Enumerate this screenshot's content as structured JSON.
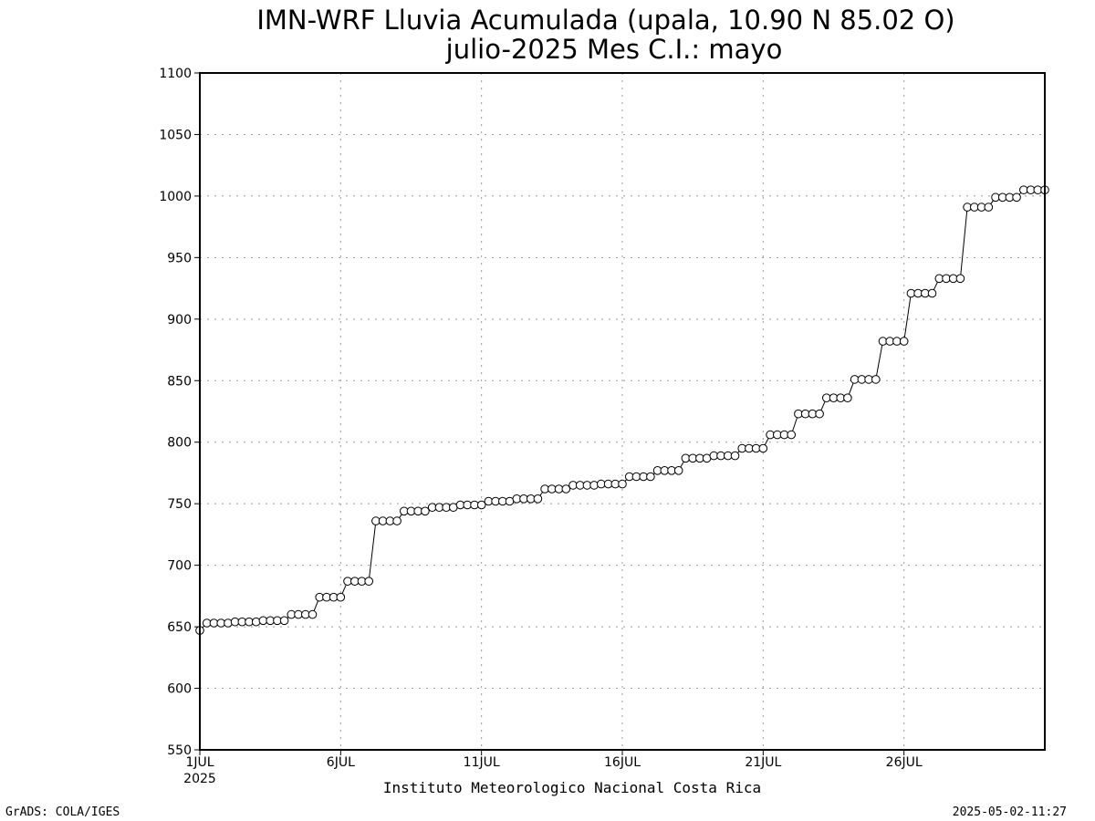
{
  "chart_data": {
    "type": "line",
    "title": "IMN-WRF  Lluvia Acumulada (upala, 10.90  N 85.02  O)",
    "subtitle": "julio-2025 Mes C.I.: mayo",
    "xlabel": "Instituto Meteorologico Nacional Costa Rica",
    "ylabel": "",
    "ylim": [
      550,
      1100
    ],
    "yticks": [
      550,
      600,
      650,
      700,
      750,
      800,
      850,
      900,
      950,
      1000,
      1050,
      1100
    ],
    "xlim_day": [
      1,
      31
    ],
    "xticks": [
      {
        "day": 1,
        "label": "1JUL",
        "sublabel": "2025"
      },
      {
        "day": 6,
        "label": "6JUL"
      },
      {
        "day": 11,
        "label": "11JUL"
      },
      {
        "day": 16,
        "label": "16JUL"
      },
      {
        "day": 21,
        "label": "21JUL"
      },
      {
        "day": 26,
        "label": "26JUL"
      }
    ],
    "grid": true,
    "x_step_days": 0.25,
    "x_start_day": 1,
    "values": [
      647,
      653,
      653,
      653,
      653,
      654,
      654,
      654,
      654,
      655,
      655,
      655,
      655,
      660,
      660,
      660,
      660,
      674,
      674,
      674,
      674,
      687,
      687,
      687,
      687,
      736,
      736,
      736,
      736,
      744,
      744,
      744,
      744,
      747,
      747,
      747,
      747,
      749,
      749,
      749,
      749,
      752,
      752,
      752,
      752,
      754,
      754,
      754,
      754,
      762,
      762,
      762,
      762,
      765,
      765,
      765,
      765,
      766,
      766,
      766,
      766,
      772,
      772,
      772,
      772,
      777,
      777,
      777,
      777,
      787,
      787,
      787,
      787,
      789,
      789,
      789,
      789,
      795,
      795,
      795,
      795,
      806,
      806,
      806,
      806,
      823,
      823,
      823,
      823,
      836,
      836,
      836,
      836,
      851,
      851,
      851,
      851,
      882,
      882,
      882,
      882,
      921,
      921,
      921,
      921,
      933,
      933,
      933,
      933,
      991,
      991,
      991,
      991,
      999,
      999,
      999,
      999,
      1005,
      1005,
      1005,
      1005
    ]
  },
  "footer": {
    "left": "GrADS: COLA/IGES",
    "right": "2025-05-02-11:27"
  }
}
